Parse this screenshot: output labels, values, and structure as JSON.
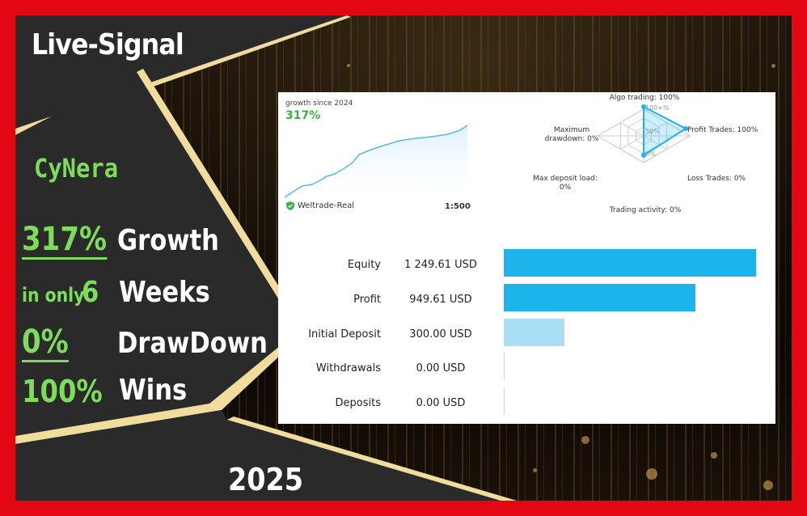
{
  "banner": {
    "title": "Live-Signal",
    "name": "CyNera",
    "growth_value": "317%",
    "growth_label": "Growth",
    "in_only": "in only",
    "weeks_value": "6",
    "weeks_label": "Weeks",
    "drawdown_value": "0%",
    "drawdown_label": "DrawDown",
    "wins_value": "100%",
    "wins_label": "Wins",
    "year": "2025"
  },
  "growth_widget": {
    "label": "growth since 2024",
    "value": "317%",
    "broker": "Weltrade-Real",
    "leverage": "1:500",
    "line_color": "#5bb8e0"
  },
  "radar": {
    "algo_trading": "Algo trading: 100%",
    "profit_trades": "Profit Trades: 100%",
    "loss_trades": "Loss Trades: 0%",
    "trading_activity": "Trading activity: 0%",
    "max_deposit_load_1": "Max deposit load:",
    "max_deposit_load_2": "0%",
    "max_drawdown_1": "Maximum",
    "max_drawdown_2": "drawdown: 0%",
    "scale_100": "100+%",
    "scale_50": "50%",
    "scale_0": "0%",
    "values": {
      "algo": 100,
      "profit": 100,
      "loss": 0,
      "activity": 0,
      "deposit_load": 0,
      "drawdown": 0
    }
  },
  "balance": {
    "rows": [
      {
        "label": "Equity",
        "value": "1 249.61 USD",
        "amount": 1249.61,
        "color": "#1db4ec"
      },
      {
        "label": "Profit",
        "value": "949.61 USD",
        "amount": 949.61,
        "color": "#1db4ec"
      },
      {
        "label": "Initial Deposit",
        "value": "300.00 USD",
        "amount": 300.0,
        "color": "#a9dff5"
      },
      {
        "label": "Withdrawals",
        "value": "0.00 USD",
        "amount": 0,
        "color": "#a9dff5"
      },
      {
        "label": "Deposits",
        "value": "0.00 USD",
        "amount": 0,
        "color": "#a9dff5"
      }
    ],
    "max": 1249.61
  },
  "colors": {
    "frame": "#e30613",
    "accent_green": "#7ddc5a",
    "bar_blue": "#1db4ec",
    "cream": "#f0dc9c"
  }
}
